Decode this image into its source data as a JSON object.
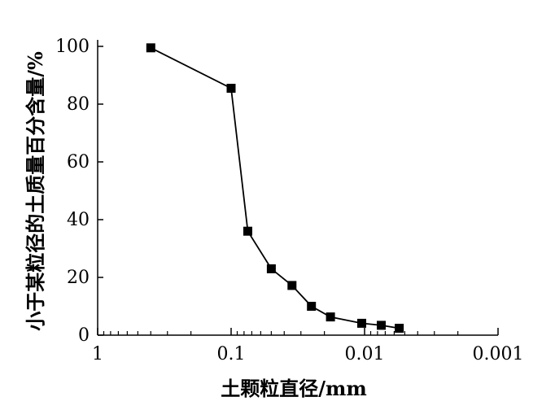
{
  "chart_data": {
    "type": "line",
    "title": "",
    "xlabel": "土颗粒直径/mm",
    "ylabel": "小于某粒径的土质量百分含量/%",
    "x_scale": "log",
    "x_reversed": true,
    "xlim": [
      1,
      0.001
    ],
    "ylim": [
      0,
      100
    ],
    "x_ticks": [
      1,
      0.1,
      0.01,
      0.001
    ],
    "x_tick_labels": [
      "1",
      "0.1",
      "0.01",
      "0.001"
    ],
    "y_ticks": [
      0,
      20,
      40,
      60,
      80,
      100
    ],
    "y_tick_labels": [
      "0",
      "20",
      "40",
      "60",
      "80",
      "100"
    ],
    "grid": false,
    "series": [
      {
        "marker": "square",
        "color": "#000000",
        "points": [
          {
            "x": 0.4,
            "y": 99.5
          },
          {
            "x": 0.1,
            "y": 85.5
          },
          {
            "x": 0.075,
            "y": 36
          },
          {
            "x": 0.05,
            "y": 23
          },
          {
            "x": 0.035,
            "y": 17.2
          },
          {
            "x": 0.025,
            "y": 10
          },
          {
            "x": 0.018,
            "y": 6.3
          },
          {
            "x": 0.0105,
            "y": 4.1
          },
          {
            "x": 0.0075,
            "y": 3.4
          },
          {
            "x": 0.0055,
            "y": 2.4
          }
        ]
      }
    ]
  }
}
